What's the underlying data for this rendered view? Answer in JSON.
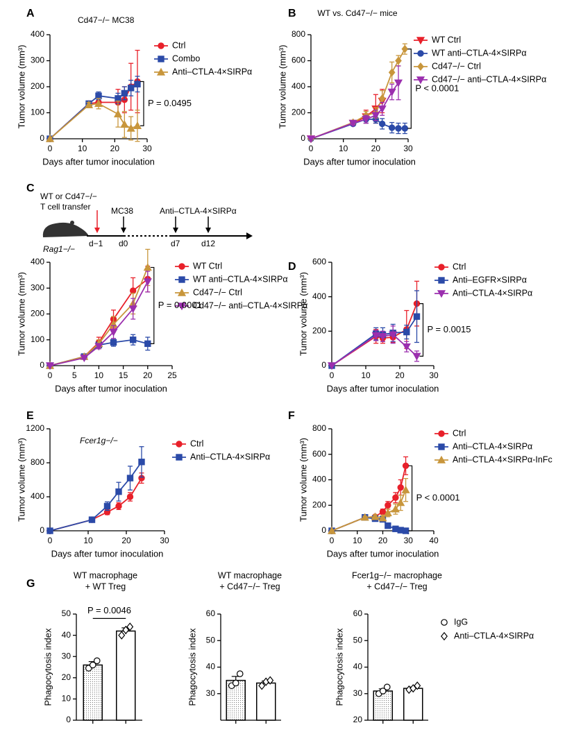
{
  "diagram": {
    "panel": "C",
    "line1": "WT or Cd47−/−",
    "line2": "T cell transfer",
    "mouse": "Rag1−/−",
    "drug1": "MC38",
    "drug2": "Anti–CTLA-4×SIRPα",
    "days": [
      "d−1",
      "d0",
      "d7",
      "d12"
    ]
  },
  "chart_data": [
    {
      "type": "line",
      "panel": "A",
      "title": "Cd47−/− MC38",
      "xlabel": "Days after tumor inoculation",
      "ylabel": "Tumor volume (mm³)",
      "xlim": [
        0,
        30
      ],
      "xticks": [
        0,
        10,
        20,
        30
      ],
      "ylim": [
        0,
        400
      ],
      "yticks": [
        0,
        100,
        200,
        300,
        400
      ],
      "annotation": "P = 0.0495",
      "series": [
        {
          "name": "Ctrl",
          "color": "#e8202a",
          "marker": "circle",
          "x": [
            0,
            12,
            15,
            21,
            23,
            25,
            27
          ],
          "values": [
            0,
            135,
            140,
            140,
            150,
            200,
            220
          ],
          "errors": [
            0,
            10,
            15,
            50,
            50,
            90,
            120
          ]
        },
        {
          "name": "Combo",
          "color": "#2b4aa8",
          "marker": "square",
          "x": [
            0,
            12,
            15,
            21,
            23,
            25,
            27
          ],
          "values": [
            0,
            135,
            165,
            155,
            175,
            195,
            210
          ],
          "errors": [
            0,
            10,
            15,
            20,
            25,
            30,
            30
          ]
        },
        {
          "name": "Anti–CTLA-4×SIRPα",
          "color": "#c8963c",
          "marker": "triangle-up",
          "x": [
            0,
            12,
            15,
            21,
            23,
            25,
            27
          ],
          "values": [
            0,
            130,
            135,
            95,
            55,
            40,
            50
          ],
          "errors": [
            0,
            10,
            20,
            50,
            50,
            45,
            60
          ]
        }
      ]
    },
    {
      "type": "line",
      "panel": "B",
      "title": "WT vs. Cd47−/− mice",
      "xlabel": "Days after tumor inoculation",
      "ylabel": "Tumor volume (mm³)",
      "xlim": [
        0,
        30
      ],
      "xticks": [
        0,
        10,
        20,
        30
      ],
      "ylim": [
        0,
        800
      ],
      "yticks": [
        0,
        200,
        400,
        600,
        800
      ],
      "annotation": "P < 0.0001",
      "series": [
        {
          "name": "WT Ctrl",
          "color": "#e8202a",
          "marker": "triangle-down",
          "x": [
            0,
            13,
            17,
            20,
            22
          ],
          "values": [
            0,
            120,
            170,
            230,
            290
          ],
          "errors": [
            0,
            15,
            50,
            110,
            90
          ]
        },
        {
          "name": "WT anti–CTLA-4×SIRPα",
          "color": "#2b4aa8",
          "marker": "circle",
          "x": [
            0,
            13,
            17,
            20,
            22,
            25,
            27,
            29
          ],
          "values": [
            0,
            115,
            150,
            150,
            115,
            85,
            80,
            80
          ],
          "errors": [
            0,
            15,
            30,
            30,
            40,
            40,
            40,
            40
          ]
        },
        {
          "name": "Cd47−/− Ctrl",
          "color": "#c8963c",
          "marker": "diamond",
          "x": [
            0,
            13,
            17,
            20,
            22,
            25,
            27,
            29
          ],
          "values": [
            0,
            125,
            180,
            200,
            310,
            510,
            600,
            690
          ],
          "errors": [
            0,
            15,
            30,
            40,
            60,
            80,
            40,
            40
          ]
        },
        {
          "name": "Cd47−/− anti–CTLA-4×SIRPα",
          "color": "#9b2fae",
          "marker": "triangle-down",
          "x": [
            0,
            13,
            17,
            20,
            22,
            25,
            27
          ],
          "values": [
            0,
            120,
            150,
            180,
            230,
            360,
            430
          ],
          "errors": [
            0,
            15,
            30,
            40,
            50,
            60,
            130
          ]
        }
      ]
    },
    {
      "type": "line",
      "xlabel": "Days after tumor inoculation",
      "ylabel": "Tumor volume (mm³)",
      "xlim": [
        0,
        25
      ],
      "xticks": [
        0,
        5,
        10,
        15,
        20,
        25
      ],
      "ylim": [
        0,
        400
      ],
      "yticks": [
        0,
        100,
        200,
        300,
        400
      ],
      "annotation": "P = 0.0001",
      "series": [
        {
          "name": "WT Ctrl",
          "color": "#e8202a",
          "marker": "circle",
          "x": [
            0,
            7,
            10,
            13,
            17,
            20
          ],
          "values": [
            0,
            35,
            90,
            180,
            290,
            335
          ],
          "errors": [
            0,
            5,
            20,
            35,
            50,
            50
          ]
        },
        {
          "name": "WT anti–CTLA-4×SIRPα",
          "color": "#2b4aa8",
          "marker": "square",
          "x": [
            0,
            7,
            10,
            13,
            17,
            20
          ],
          "values": [
            0,
            35,
            80,
            90,
            100,
            85
          ],
          "errors": [
            0,
            5,
            10,
            15,
            20,
            25
          ]
        },
        {
          "name": "Cd47−/− Ctrl",
          "color": "#c8963c",
          "marker": "triangle-up",
          "x": [
            0,
            7,
            10,
            13,
            17,
            20
          ],
          "values": [
            0,
            35,
            85,
            160,
            240,
            380
          ],
          "errors": [
            0,
            5,
            15,
            30,
            40,
            70
          ]
        },
        {
          "name": "Cd47−/− anti–CTLA-4×SIRPα",
          "color": "#9b2fae",
          "marker": "triangle-down",
          "x": [
            0,
            7,
            10,
            13,
            17,
            20
          ],
          "values": [
            0,
            30,
            75,
            130,
            220,
            325
          ],
          "errors": [
            0,
            5,
            10,
            25,
            40,
            40
          ]
        }
      ]
    },
    {
      "type": "line",
      "panel": "D",
      "xlabel": "Days after tumor inoculation",
      "ylabel": "Tumor volume (mm³)",
      "xlim": [
        0,
        30
      ],
      "xticks": [
        0,
        10,
        20,
        30
      ],
      "ylim": [
        0,
        600
      ],
      "yticks": [
        0,
        200,
        400,
        600
      ],
      "annotation": "P = 0.0015",
      "series": [
        {
          "name": "Ctrl",
          "color": "#e8202a",
          "marker": "circle",
          "x": [
            0,
            13,
            15,
            18,
            22,
            25
          ],
          "values": [
            0,
            170,
            160,
            165,
            210,
            360
          ],
          "errors": [
            0,
            40,
            30,
            30,
            110,
            130
          ]
        },
        {
          "name": "Anti–EGFR×SIRPα",
          "color": "#2b4aa8",
          "marker": "square",
          "x": [
            0,
            13,
            15,
            18,
            22,
            25
          ],
          "values": [
            0,
            185,
            180,
            190,
            195,
            285
          ],
          "errors": [
            0,
            35,
            40,
            50,
            40,
            150
          ]
        },
        {
          "name": "Anti–CTLA-4×SIRPα",
          "color": "#9b2fae",
          "marker": "triangle-down",
          "x": [
            0,
            13,
            15,
            18,
            22,
            25
          ],
          "values": [
            0,
            175,
            170,
            180,
            110,
            55
          ],
          "errors": [
            0,
            30,
            30,
            50,
            30,
            30
          ]
        }
      ]
    },
    {
      "type": "line",
      "panel": "E",
      "title": "Fcer1g−/−",
      "xlabel": "Days after tumor inoculation",
      "ylabel": "Tumor volume (mm³)",
      "xlim": [
        0,
        30
      ],
      "xticks": [
        0,
        10,
        20,
        30
      ],
      "ylim": [
        0,
        1200
      ],
      "yticks": [
        0,
        400,
        800,
        1200
      ],
      "series": [
        {
          "name": "Ctrl",
          "color": "#e8202a",
          "marker": "circle",
          "x": [
            0,
            11,
            15,
            18,
            21,
            24
          ],
          "values": [
            0,
            130,
            220,
            290,
            400,
            620
          ],
          "errors": [
            0,
            10,
            30,
            40,
            50,
            60
          ]
        },
        {
          "name": "Anti–CTLA-4×SIRPα",
          "color": "#2b4aa8",
          "marker": "square",
          "x": [
            0,
            11,
            15,
            18,
            21,
            24
          ],
          "values": [
            0,
            130,
            290,
            460,
            620,
            810
          ],
          "errors": [
            0,
            10,
            50,
            110,
            140,
            180
          ]
        }
      ]
    },
    {
      "type": "line",
      "panel": "F",
      "xlabel": "Days after tumor inoculation",
      "ylabel": "Tumor volume (mm³)",
      "xlim": [
        0,
        40
      ],
      "xticks": [
        0,
        10,
        20,
        30,
        40
      ],
      "ylim": [
        0,
        800
      ],
      "yticks": [
        0,
        200,
        400,
        600,
        800
      ],
      "annotation": "P < 0.0001",
      "series": [
        {
          "name": "Ctrl",
          "color": "#e8202a",
          "marker": "circle",
          "x": [
            0,
            13,
            17,
            20,
            22,
            25,
            27,
            29
          ],
          "values": [
            0,
            105,
            110,
            150,
            200,
            260,
            340,
            510
          ],
          "errors": [
            0,
            10,
            15,
            20,
            30,
            40,
            60,
            70
          ]
        },
        {
          "name": "Anti–CTLA-4×SIRPα",
          "color": "#2b4aa8",
          "marker": "square",
          "x": [
            0,
            13,
            17,
            20,
            22,
            25,
            27,
            29
          ],
          "values": [
            0,
            105,
            95,
            90,
            40,
            15,
            5,
            0
          ],
          "errors": [
            0,
            10,
            10,
            15,
            10,
            5,
            3,
            0
          ]
        },
        {
          "name": "Anti–CTLA-4×SIRPα-InFc",
          "color": "#c8963c",
          "marker": "triangle-up",
          "x": [
            0,
            13,
            17,
            20,
            22,
            25,
            27,
            29
          ],
          "values": [
            0,
            105,
            110,
            100,
            140,
            170,
            220,
            320
          ],
          "errors": [
            0,
            10,
            15,
            20,
            30,
            40,
            60,
            90
          ]
        }
      ]
    },
    {
      "type": "bar",
      "panel": "G",
      "title": [
        "WT macrophage",
        "+ WT Treg"
      ],
      "ylabel": "Phagocytosis index",
      "categories": [
        null,
        null
      ],
      "ylim": [
        0,
        50
      ],
      "yticks": [
        0,
        10,
        20,
        30,
        40,
        50
      ],
      "values": [
        26,
        42
      ],
      "errors": [
        1.6,
        1.5
      ],
      "points": [
        [
          24.5,
          26,
          28
        ],
        [
          40,
          42.5,
          44
        ]
      ],
      "bar_styles": [
        "dotted",
        "plain"
      ],
      "point_markers": [
        "circle",
        "diamond"
      ],
      "annotation": "P = 0.0046"
    },
    {
      "type": "bar",
      "title": [
        "WT macrophage",
        "+ Cd47−/− Treg"
      ],
      "ylabel": "Phagocytosis index",
      "categories": [
        null,
        null
      ],
      "ylim": [
        20,
        60
      ],
      "yticks": [
        30,
        40,
        50,
        60
      ],
      "values": [
        35,
        34
      ],
      "errors": [
        1.5,
        0.8
      ],
      "points": [
        [
          33,
          34,
          37.5
        ],
        [
          33,
          34.5,
          35
        ]
      ],
      "bar_styles": [
        "dotted",
        "plain"
      ],
      "point_markers": [
        "circle",
        "diamond"
      ]
    },
    {
      "type": "bar",
      "title": [
        "Fcer1g−/− macrophage",
        "+ Cd47−/− Treg"
      ],
      "ylabel": "Phagocytosis index",
      "categories": [
        null,
        null
      ],
      "ylim": [
        20,
        60
      ],
      "yticks": [
        20,
        30,
        40,
        50,
        60
      ],
      "values": [
        31,
        32
      ],
      "errors": [
        0.8,
        0.5
      ],
      "points": [
        [
          30,
          31,
          32.5
        ],
        [
          31.5,
          32,
          33
        ]
      ],
      "bar_styles": [
        "dotted",
        "plain"
      ],
      "point_markers": [
        "circle",
        "diamond"
      ],
      "legend": [
        "IgG",
        "Anti–CTLA-4×SIRPα"
      ]
    }
  ]
}
